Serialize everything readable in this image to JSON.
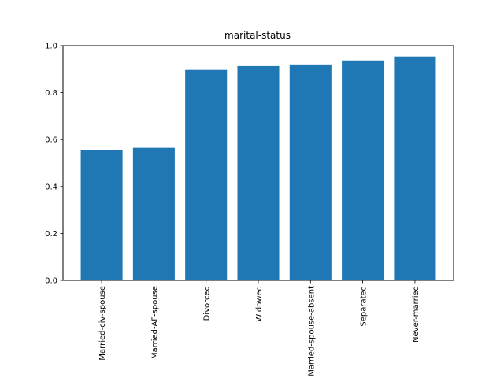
{
  "chart_data": {
    "type": "bar",
    "title": "marital-status",
    "xlabel": "",
    "ylabel": "",
    "categories": [
      "Married-civ-spouse",
      "Married-AF-spouse",
      "Divorced",
      "Widowed",
      "Married-spouse-absent",
      "Separated",
      "Never-married"
    ],
    "values": [
      0.555,
      0.565,
      0.897,
      0.913,
      0.92,
      0.937,
      0.954
    ],
    "ylim": [
      0,
      1.0
    ],
    "yticks": [
      0.0,
      0.2,
      0.4,
      0.6,
      0.8,
      1.0
    ],
    "ytick_labels": [
      "0.0",
      "0.2",
      "0.4",
      "0.6",
      "0.8",
      "1.0"
    ],
    "bar_color": "#1f77b4",
    "grid": false,
    "legend": "none"
  }
}
